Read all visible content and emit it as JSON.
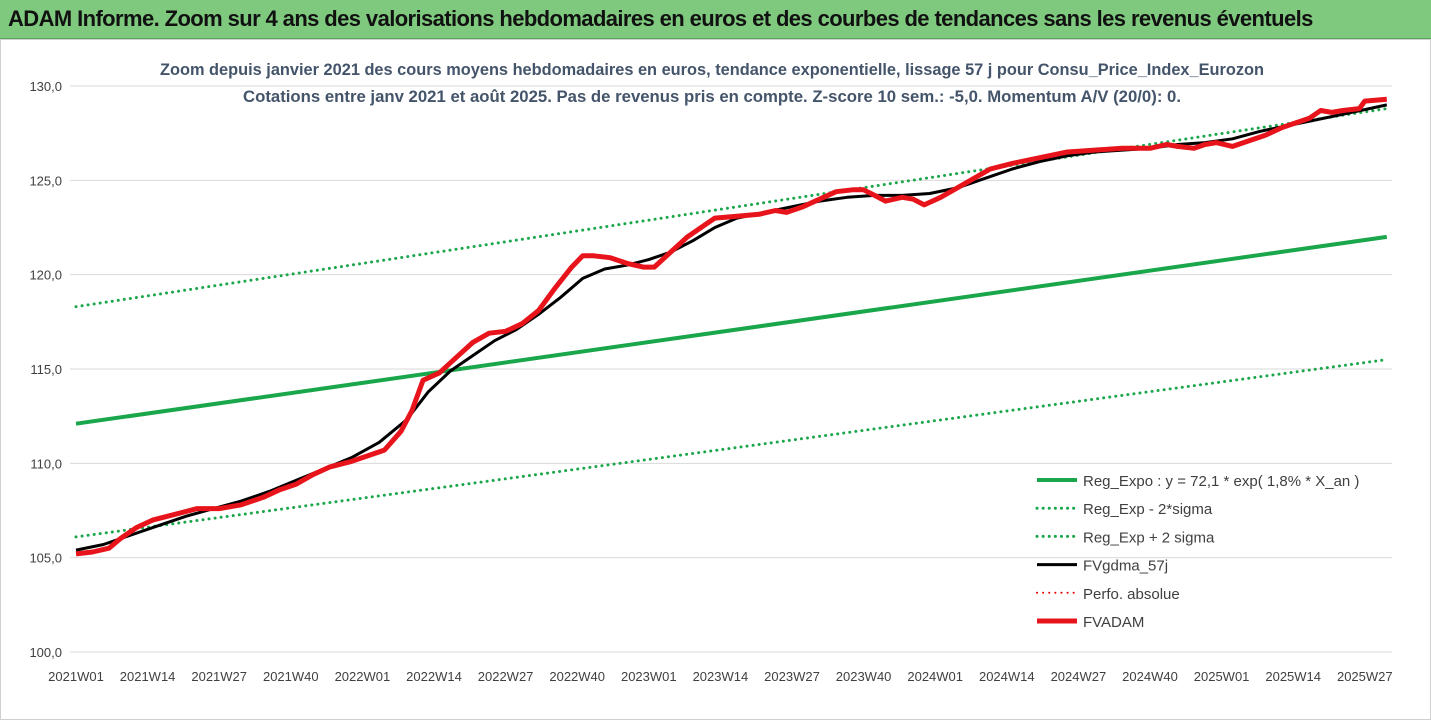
{
  "banner": {
    "title": "ADAM Informe. Zoom sur 4 ans des valorisations hebdomadaires en euros et des courbes de tendances sans les revenus éventuels"
  },
  "chart_data": {
    "type": "line",
    "title": "Zoom depuis janvier 2021 des cours moyens hebdomadaires en euros, tendance exponentielle, lissage 57 j pour Consu_Price_Index_Eurozon",
    "subtitle": "Cotations entre janv 2021 et août 2025. Pas de revenus pris en compte. Z-score 10 sem.: -5,0. Momentum A/V (20/0): 0.",
    "ylim": [
      100,
      130
    ],
    "yticks": [
      "100,0",
      "105,0",
      "110,0",
      "115,0",
      "120,0",
      "125,0",
      "130,0"
    ],
    "ytick_values": [
      100,
      105,
      110,
      115,
      120,
      125,
      130
    ],
    "x_ticks": [
      "2021W01",
      "2021W14",
      "2021W27",
      "2021W40",
      "2022W01",
      "2022W14",
      "2022W27",
      "2022W40",
      "2023W01",
      "2023W14",
      "2023W27",
      "2023W40",
      "2024W01",
      "2024W14",
      "2024W27",
      "2024W40",
      "2025W01",
      "2025W14",
      "2025W27"
    ],
    "x_tick_weeks": [
      0,
      13,
      26,
      39,
      52,
      65,
      78,
      91,
      104,
      117,
      130,
      143,
      156,
      169,
      182,
      195,
      208,
      221,
      234
    ],
    "x_max_week": 238,
    "grid": "horizontal",
    "legend_position": "bottom-right",
    "series": [
      {
        "name": "Reg_Expo : y = 72,1 * exp( 1,8% *  X_an )",
        "color": "#1aa64a",
        "style": "solid",
        "width": 4,
        "points": [
          [
            0,
            112.1
          ],
          [
            238,
            122.0
          ]
        ]
      },
      {
        "name": "Reg_Exp - 2*sigma",
        "color": "#1aa64a",
        "style": "dotted",
        "width": 3,
        "points": [
          [
            0,
            106.1
          ],
          [
            238,
            115.5
          ]
        ]
      },
      {
        "name": "Reg_Exp + 2 sigma",
        "color": "#1aa64a",
        "style": "dotted",
        "width": 3,
        "points": [
          [
            0,
            118.3
          ],
          [
            238,
            128.8
          ]
        ]
      },
      {
        "name": "FVgdma_57j",
        "color": "#000000",
        "style": "solid",
        "width": 3,
        "points": [
          [
            0,
            105.4
          ],
          [
            5,
            105.7
          ],
          [
            10,
            106.2
          ],
          [
            15,
            106.7
          ],
          [
            20,
            107.2
          ],
          [
            25,
            107.6
          ],
          [
            30,
            108.0
          ],
          [
            35,
            108.5
          ],
          [
            40,
            109.1
          ],
          [
            45,
            109.7
          ],
          [
            50,
            110.3
          ],
          [
            55,
            111.1
          ],
          [
            60,
            112.3
          ],
          [
            64,
            113.8
          ],
          [
            68,
            114.9
          ],
          [
            72,
            115.7
          ],
          [
            76,
            116.5
          ],
          [
            80,
            117.1
          ],
          [
            84,
            117.9
          ],
          [
            88,
            118.8
          ],
          [
            92,
            119.8
          ],
          [
            96,
            120.3
          ],
          [
            100,
            120.5
          ],
          [
            104,
            120.8
          ],
          [
            108,
            121.2
          ],
          [
            112,
            121.8
          ],
          [
            116,
            122.5
          ],
          [
            120,
            123.0
          ],
          [
            125,
            123.3
          ],
          [
            130,
            123.6
          ],
          [
            135,
            123.9
          ],
          [
            140,
            124.1
          ],
          [
            145,
            124.2
          ],
          [
            150,
            124.2
          ],
          [
            155,
            124.3
          ],
          [
            160,
            124.6
          ],
          [
            165,
            125.1
          ],
          [
            170,
            125.6
          ],
          [
            175,
            126.0
          ],
          [
            180,
            126.3
          ],
          [
            185,
            126.5
          ],
          [
            190,
            126.6
          ],
          [
            195,
            126.7
          ],
          [
            200,
            126.9
          ],
          [
            205,
            127.0
          ],
          [
            210,
            127.2
          ],
          [
            215,
            127.6
          ],
          [
            220,
            127.9
          ],
          [
            225,
            128.2
          ],
          [
            230,
            128.5
          ],
          [
            238,
            129.0
          ]
        ]
      },
      {
        "name": "Perfo. absolue",
        "color": "#e00000",
        "style": "dotted",
        "width": 2,
        "points": []
      },
      {
        "name": "FVADAM",
        "color": "#e8141b",
        "style": "solid",
        "width": 5,
        "points": [
          [
            0,
            105.2
          ],
          [
            3,
            105.3
          ],
          [
            6,
            105.5
          ],
          [
            8,
            106.0
          ],
          [
            11,
            106.6
          ],
          [
            14,
            107.0
          ],
          [
            18,
            107.3
          ],
          [
            22,
            107.6
          ],
          [
            26,
            107.6
          ],
          [
            30,
            107.8
          ],
          [
            34,
            108.2
          ],
          [
            37,
            108.6
          ],
          [
            40,
            108.9
          ],
          [
            43,
            109.4
          ],
          [
            46,
            109.8
          ],
          [
            50,
            110.1
          ],
          [
            53,
            110.4
          ],
          [
            56,
            110.7
          ],
          [
            59,
            111.7
          ],
          [
            61,
            112.8
          ],
          [
            63,
            114.4
          ],
          [
            66,
            114.8
          ],
          [
            69,
            115.6
          ],
          [
            72,
            116.4
          ],
          [
            75,
            116.9
          ],
          [
            78,
            117.0
          ],
          [
            81,
            117.4
          ],
          [
            84,
            118.1
          ],
          [
            87,
            119.3
          ],
          [
            90,
            120.4
          ],
          [
            92,
            121.0
          ],
          [
            94,
            121.0
          ],
          [
            97,
            120.9
          ],
          [
            100,
            120.6
          ],
          [
            103,
            120.4
          ],
          [
            105,
            120.4
          ],
          [
            108,
            121.2
          ],
          [
            111,
            122.0
          ],
          [
            114,
            122.6
          ],
          [
            116,
            123.0
          ],
          [
            120,
            123.1
          ],
          [
            124,
            123.2
          ],
          [
            127,
            123.4
          ],
          [
            129,
            123.3
          ],
          [
            132,
            123.6
          ],
          [
            135,
            124.0
          ],
          [
            138,
            124.4
          ],
          [
            141,
            124.5
          ],
          [
            143,
            124.5
          ],
          [
            145,
            124.2
          ],
          [
            147,
            123.9
          ],
          [
            150,
            124.1
          ],
          [
            152,
            124.0
          ],
          [
            154,
            123.7
          ],
          [
            157,
            124.1
          ],
          [
            160,
            124.6
          ],
          [
            163,
            125.1
          ],
          [
            166,
            125.6
          ],
          [
            170,
            125.9
          ],
          [
            175,
            126.2
          ],
          [
            180,
            126.5
          ],
          [
            185,
            126.6
          ],
          [
            190,
            126.7
          ],
          [
            195,
            126.7
          ],
          [
            198,
            126.9
          ],
          [
            200,
            126.8
          ],
          [
            203,
            126.7
          ],
          [
            205,
            126.9
          ],
          [
            207,
            127.0
          ],
          [
            210,
            126.8
          ],
          [
            213,
            127.1
          ],
          [
            216,
            127.4
          ],
          [
            219,
            127.8
          ],
          [
            221,
            128.0
          ],
          [
            224,
            128.3
          ],
          [
            226,
            128.7
          ],
          [
            228,
            128.6
          ],
          [
            230,
            128.7
          ],
          [
            233,
            128.8
          ],
          [
            234,
            129.2
          ],
          [
            238,
            129.3
          ]
        ]
      }
    ]
  }
}
